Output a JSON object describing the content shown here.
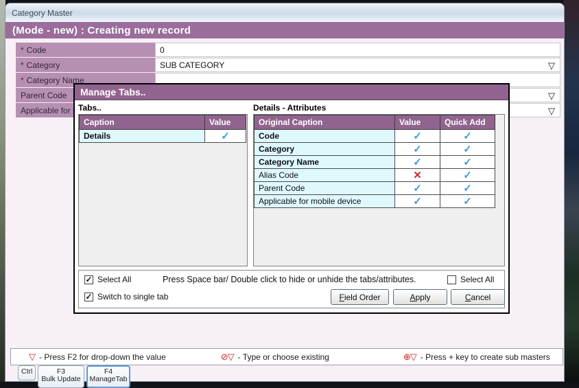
{
  "window": {
    "title": "Category Master",
    "mode_bar": "(Mode - new) : Creating new record"
  },
  "form": {
    "required_marker": "*",
    "dropdown_glyph": "▽",
    "rows": [
      {
        "label": "Code",
        "required": true,
        "value": "0",
        "dropdown": false
      },
      {
        "label": "Category",
        "required": true,
        "value": "SUB CATEGORY",
        "dropdown": true
      },
      {
        "label": "Category Name",
        "required": true,
        "value": "",
        "dropdown": false
      },
      {
        "label": "Parent Code",
        "required": false,
        "value": "",
        "dropdown": true
      },
      {
        "label": "Applicable for mobile device",
        "required": false,
        "value": "",
        "dropdown": true
      }
    ]
  },
  "dialog": {
    "title": "Manage Tabs..",
    "glyphs": {
      "check": "✓",
      "cross": "✕"
    },
    "tabs_section": {
      "label": "Tabs..",
      "columns": [
        "Caption",
        "Value"
      ],
      "rows": [
        {
          "caption": "Details",
          "bold": true,
          "value": "check"
        }
      ]
    },
    "attributes_section": {
      "label": "Details - Attributes",
      "columns": [
        "Original Caption",
        "Value",
        "Quick Add"
      ],
      "rows": [
        {
          "caption": "Code",
          "bold": true,
          "value": "check",
          "quick_add": "check"
        },
        {
          "caption": "Category",
          "bold": true,
          "value": "check",
          "quick_add": "check"
        },
        {
          "caption": "Category Name",
          "bold": true,
          "value": "check",
          "quick_add": "check"
        },
        {
          "caption": "Alias Code",
          "bold": false,
          "value": "cross",
          "quick_add": "check"
        },
        {
          "caption": "Parent Code",
          "bold": false,
          "value": "check",
          "quick_add": "check"
        },
        {
          "caption": "Applicable for mobile device",
          "bold": false,
          "value": "check",
          "quick_add": "check"
        }
      ]
    },
    "footer": {
      "select_all_left": {
        "label": "Select All",
        "checked": true
      },
      "message": "Press Space bar/ Double click to hide or unhide the tabs/attributes.",
      "select_all_right": {
        "label": "Select All",
        "checked": false
      },
      "switch_single_tab": {
        "label": "Switch to single tab",
        "checked": true
      },
      "buttons": [
        {
          "label": "Field Order"
        },
        {
          "label": "Apply"
        },
        {
          "label": "Cancel"
        }
      ]
    }
  },
  "legend": {
    "items": [
      {
        "icon": "▽",
        "text": "- Press F2 for drop-down the value"
      },
      {
        "icon": "⊘▽",
        "text": "- Type or choose existing"
      },
      {
        "icon": "⊕▽",
        "text": "- Press + key to create sub masters"
      }
    ]
  },
  "fkeys": [
    {
      "key": "Ctrl",
      "label": ""
    },
    {
      "key": "F3",
      "label": "Bulk Update"
    },
    {
      "key": "F4",
      "label": "ManageTab",
      "focused": true
    }
  ],
  "colors": {
    "purple_header": "#91648f",
    "mode_bar_purple": "#9b6d9b",
    "label_mauve": "#b690b3",
    "row_cyan": "#dff8fc",
    "check_blue": "#3d97e0",
    "cross_red": "#cc2a2a",
    "legend_red": "#cc2222"
  }
}
